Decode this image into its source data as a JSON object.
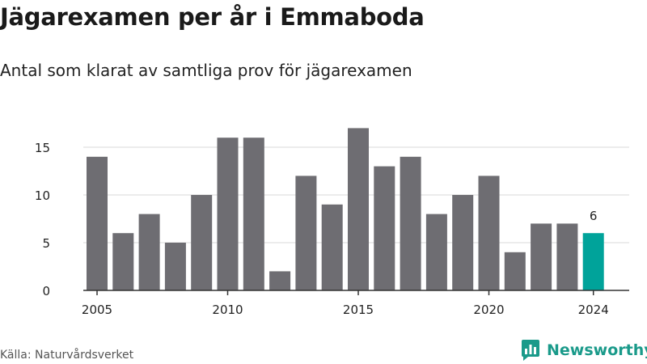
{
  "header": {
    "title": "Jägarexamen per år i Emmaboda",
    "subtitle": "Antal som klarat av samtliga prov för jägarexamen"
  },
  "footer": {
    "source": "Källa: Naturvårdsverket",
    "brand": "Newsworthy"
  },
  "icons": {
    "brand_logo": "newsworthy-chart-bubble-icon"
  },
  "colors": {
    "bar": "#6e6d72",
    "highlight": "#00a39a",
    "grid": "#d9d9d9",
    "axis": "#333333",
    "brand": "#1a9a8a"
  },
  "chart_data": {
    "type": "bar",
    "x": [
      2005,
      2006,
      2007,
      2008,
      2009,
      2010,
      2011,
      2012,
      2013,
      2014,
      2015,
      2016,
      2017,
      2018,
      2019,
      2020,
      2021,
      2022,
      2023,
      2024
    ],
    "values": [
      14,
      6,
      8,
      5,
      10,
      16,
      16,
      2,
      12,
      9,
      17,
      13,
      14,
      8,
      10,
      12,
      4,
      7,
      7,
      6
    ],
    "xticks": [
      "2005",
      "2010",
      "2015",
      "2020",
      "2024"
    ],
    "yticks": [
      0,
      5,
      10,
      15
    ],
    "ylim": [
      0,
      17
    ],
    "grid": true,
    "highlight": {
      "x": 2024,
      "label": "6"
    }
  }
}
